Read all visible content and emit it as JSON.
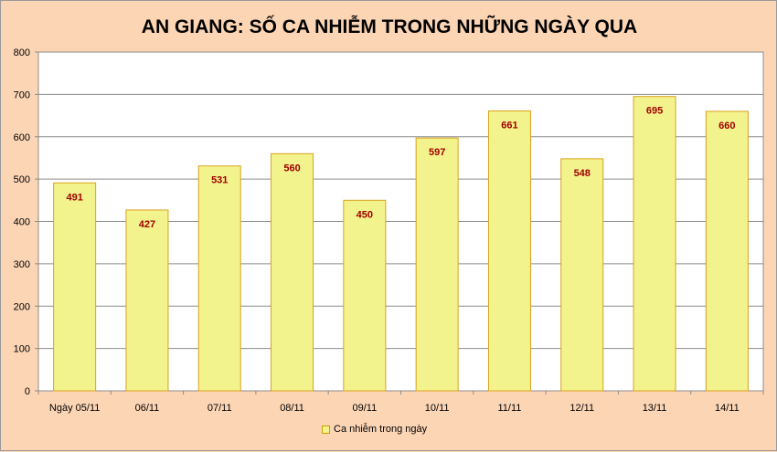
{
  "chart_data": {
    "type": "bar",
    "title": "AN GIANG: SỐ CA NHIỄM TRONG NHỮNG NGÀY QUA",
    "categories": [
      "Ngày 05/11",
      "06/11",
      "07/11",
      "08/11",
      "09/11",
      "10/11",
      "11/11",
      "12/11",
      "13/11",
      "14/11"
    ],
    "series": [
      {
        "name": "Ca nhiễm trong ngày",
        "values": [
          491,
          427,
          531,
          560,
          450,
          597,
          661,
          548,
          695,
          660
        ]
      }
    ],
    "ylim": [
      0,
      800
    ],
    "yticks": [
      "0",
      "100",
      "200",
      "300",
      "400",
      "500",
      "600",
      "700",
      "800"
    ],
    "grid": true,
    "legend_position": "bottom",
    "colors": {
      "bar_fill": "#f3f38e",
      "bar_border": "#d9a21b",
      "data_label": "#a00000",
      "background": "#fcd5b5"
    }
  }
}
